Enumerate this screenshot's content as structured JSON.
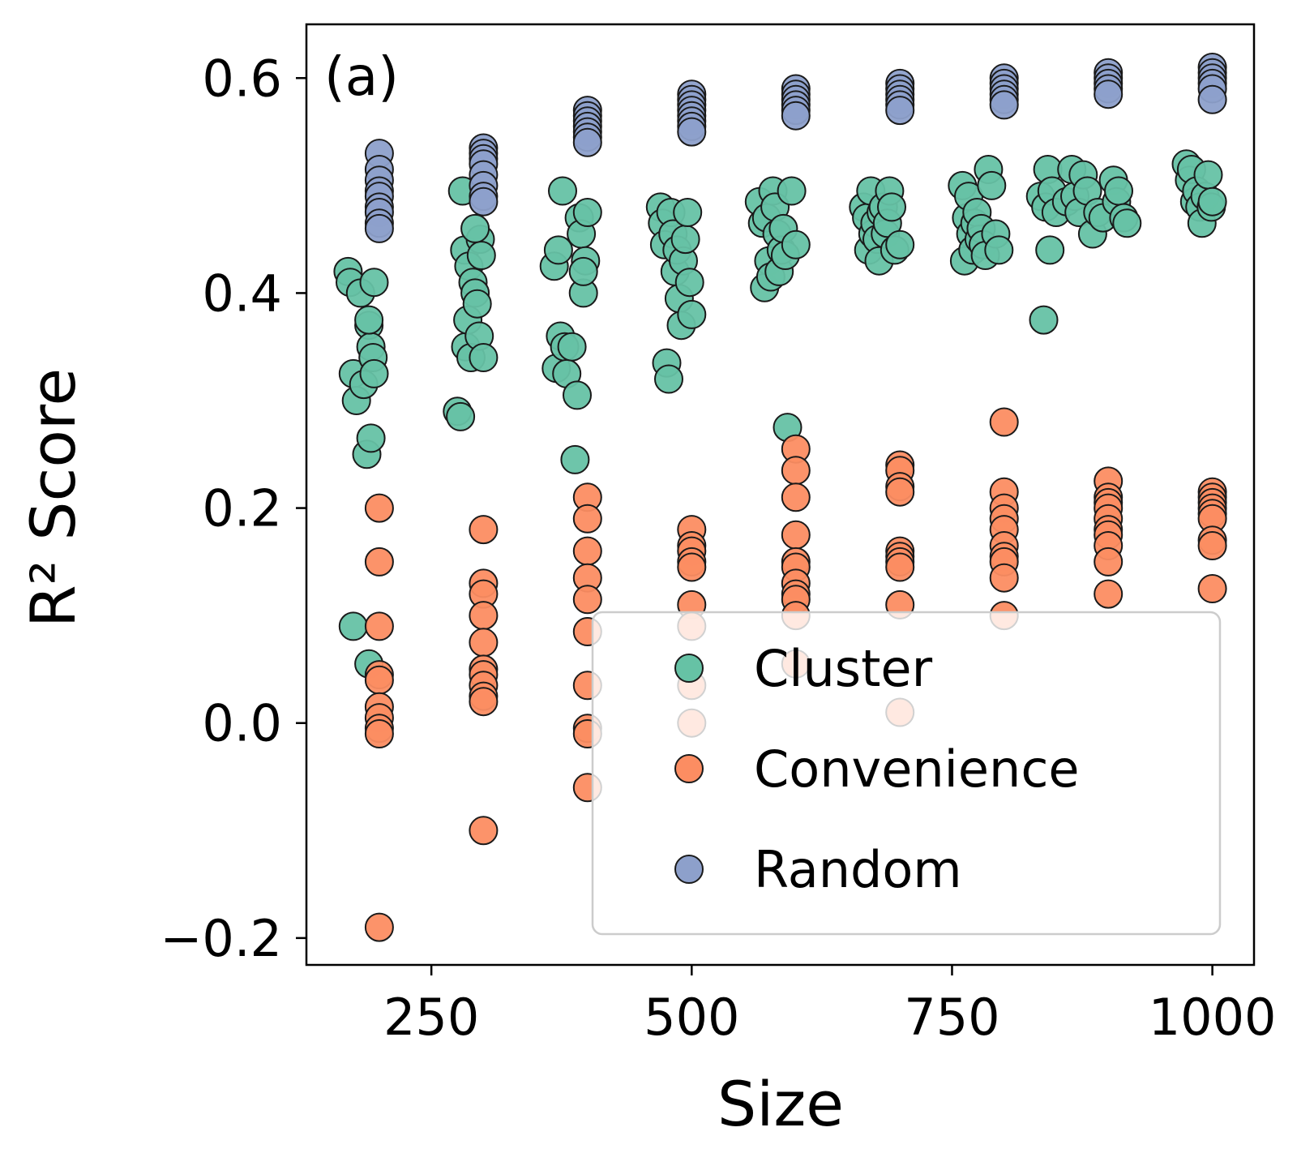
{
  "chart_data": {
    "type": "scatter",
    "panel_label": "(a)",
    "xlabel": "Size",
    "ylabel": "R² Score",
    "xlim": [
      130,
      1040
    ],
    "ylim": [
      -0.225,
      0.65
    ],
    "xticks": [
      250,
      500,
      750,
      1000
    ],
    "xtick_labels": [
      "250",
      "500",
      "750",
      "1000"
    ],
    "yticks": [
      -0.2,
      0.0,
      0.2,
      0.4,
      0.6
    ],
    "ytick_labels": [
      "−0.2",
      "0.0",
      "0.2",
      "0.4",
      "0.6"
    ],
    "grid": false,
    "legend_position": "lower-right",
    "series": [
      {
        "name": "Cluster",
        "color": "#66c2a5",
        "points": [
          [
            170,
            0.42
          ],
          [
            172,
            0.41
          ],
          [
            175,
            0.325
          ],
          [
            178,
            0.3
          ],
          [
            182,
            0.4
          ],
          [
            185,
            0.315
          ],
          [
            188,
            0.25
          ],
          [
            190,
            0.37
          ],
          [
            192,
            0.35
          ],
          [
            194,
            0.34
          ],
          [
            195,
            0.325
          ],
          [
            192,
            0.265
          ],
          [
            190,
            0.375
          ],
          [
            195,
            0.41
          ],
          [
            175,
            0.09
          ],
          [
            190,
            0.055
          ],
          [
            275,
            0.29
          ],
          [
            278,
            0.285
          ],
          [
            280,
            0.495
          ],
          [
            282,
            0.44
          ],
          [
            283,
            0.35
          ],
          [
            285,
            0.375
          ],
          [
            286,
            0.425
          ],
          [
            288,
            0.34
          ],
          [
            290,
            0.41
          ],
          [
            292,
            0.4
          ],
          [
            294,
            0.39
          ],
          [
            296,
            0.36
          ],
          [
            297,
            0.45
          ],
          [
            298,
            0.435
          ],
          [
            300,
            0.34
          ],
          [
            292,
            0.46
          ],
          [
            368,
            0.425
          ],
          [
            370,
            0.33
          ],
          [
            372,
            0.44
          ],
          [
            374,
            0.36
          ],
          [
            376,
            0.495
          ],
          [
            378,
            0.35
          ],
          [
            380,
            0.325
          ],
          [
            385,
            0.35
          ],
          [
            388,
            0.245
          ],
          [
            390,
            0.305
          ],
          [
            392,
            0.47
          ],
          [
            394,
            0.455
          ],
          [
            396,
            0.4
          ],
          [
            398,
            0.43
          ],
          [
            400,
            0.475
          ],
          [
            396,
            0.42
          ],
          [
            470,
            0.48
          ],
          [
            472,
            0.465
          ],
          [
            474,
            0.445
          ],
          [
            476,
            0.335
          ],
          [
            478,
            0.32
          ],
          [
            480,
            0.475
          ],
          [
            482,
            0.455
          ],
          [
            484,
            0.42
          ],
          [
            486,
            0.44
          ],
          [
            488,
            0.395
          ],
          [
            490,
            0.37
          ],
          [
            492,
            0.43
          ],
          [
            494,
            0.45
          ],
          [
            496,
            0.475
          ],
          [
            498,
            0.41
          ],
          [
            500,
            0.38
          ],
          [
            565,
            0.485
          ],
          [
            568,
            0.465
          ],
          [
            570,
            0.405
          ],
          [
            572,
            0.47
          ],
          [
            574,
            0.43
          ],
          [
            576,
            0.415
          ],
          [
            578,
            0.495
          ],
          [
            580,
            0.48
          ],
          [
            582,
            0.455
          ],
          [
            584,
            0.42
          ],
          [
            586,
            0.44
          ],
          [
            588,
            0.46
          ],
          [
            590,
            0.435
          ],
          [
            592,
            0.275
          ],
          [
            596,
            0.495
          ],
          [
            600,
            0.445
          ],
          [
            665,
            0.48
          ],
          [
            668,
            0.47
          ],
          [
            670,
            0.44
          ],
          [
            672,
            0.495
          ],
          [
            674,
            0.455
          ],
          [
            676,
            0.465
          ],
          [
            678,
            0.45
          ],
          [
            680,
            0.43
          ],
          [
            682,
            0.475
          ],
          [
            684,
            0.48
          ],
          [
            686,
            0.455
          ],
          [
            688,
            0.465
          ],
          [
            690,
            0.495
          ],
          [
            692,
            0.48
          ],
          [
            695,
            0.44
          ],
          [
            700,
            0.445
          ],
          [
            760,
            0.5
          ],
          [
            762,
            0.43
          ],
          [
            764,
            0.47
          ],
          [
            766,
            0.49
          ],
          [
            768,
            0.455
          ],
          [
            770,
            0.44
          ],
          [
            772,
            0.465
          ],
          [
            774,
            0.475
          ],
          [
            776,
            0.45
          ],
          [
            778,
            0.46
          ],
          [
            780,
            0.445
          ],
          [
            782,
            0.435
          ],
          [
            785,
            0.515
          ],
          [
            788,
            0.5
          ],
          [
            792,
            0.455
          ],
          [
            795,
            0.44
          ],
          [
            835,
            0.49
          ],
          [
            838,
            0.375
          ],
          [
            840,
            0.48
          ],
          [
            842,
            0.515
          ],
          [
            844,
            0.44
          ],
          [
            846,
            0.495
          ],
          [
            850,
            0.475
          ],
          [
            860,
            0.485
          ],
          [
            865,
            0.515
          ],
          [
            868,
            0.49
          ],
          [
            872,
            0.475
          ],
          [
            876,
            0.51
          ],
          [
            880,
            0.495
          ],
          [
            885,
            0.455
          ],
          [
            890,
            0.475
          ],
          [
            895,
            0.47
          ],
          [
            905,
            0.505
          ],
          [
            908,
            0.485
          ],
          [
            910,
            0.495
          ],
          [
            915,
            0.47
          ],
          [
            918,
            0.465
          ],
          [
            975,
            0.52
          ],
          [
            978,
            0.505
          ],
          [
            980,
            0.515
          ],
          [
            983,
            0.485
          ],
          [
            985,
            0.495
          ],
          [
            988,
            0.48
          ],
          [
            990,
            0.465
          ],
          [
            993,
            0.49
          ],
          [
            996,
            0.51
          ],
          [
            999,
            0.48
          ],
          [
            1000,
            0.485
          ]
        ]
      },
      {
        "name": "Convenience",
        "color": "#fc8d62",
        "points": [
          [
            200,
            0.2
          ],
          [
            200,
            0.15
          ],
          [
            200,
            0.09
          ],
          [
            200,
            0.045
          ],
          [
            200,
            0.04
          ],
          [
            200,
            0.015
          ],
          [
            200,
            0.005
          ],
          [
            200,
            -0.005
          ],
          [
            200,
            -0.01
          ],
          [
            200,
            -0.19
          ],
          [
            300,
            0.18
          ],
          [
            300,
            0.13
          ],
          [
            300,
            0.12
          ],
          [
            300,
            0.1
          ],
          [
            300,
            0.075
          ],
          [
            300,
            0.05
          ],
          [
            300,
            0.045
          ],
          [
            300,
            0.035
          ],
          [
            300,
            0.025
          ],
          [
            300,
            0.02
          ],
          [
            300,
            -0.1
          ],
          [
            400,
            0.21
          ],
          [
            400,
            0.19
          ],
          [
            400,
            0.16
          ],
          [
            400,
            0.135
          ],
          [
            400,
            0.115
          ],
          [
            400,
            0.085
          ],
          [
            400,
            0.035
          ],
          [
            400,
            -0.005
          ],
          [
            400,
            -0.01
          ],
          [
            400,
            -0.06
          ],
          [
            500,
            0.18
          ],
          [
            500,
            0.165
          ],
          [
            500,
            0.16
          ],
          [
            500,
            0.15
          ],
          [
            500,
            0.145
          ],
          [
            500,
            0.11
          ],
          [
            500,
            0.09
          ],
          [
            500,
            0.035
          ],
          [
            500,
            0.0
          ],
          [
            600,
            0.255
          ],
          [
            600,
            0.235
          ],
          [
            600,
            0.21
          ],
          [
            600,
            0.175
          ],
          [
            600,
            0.15
          ],
          [
            600,
            0.145
          ],
          [
            600,
            0.13
          ],
          [
            600,
            0.12
          ],
          [
            600,
            0.115
          ],
          [
            600,
            0.1
          ],
          [
            600,
            0.055
          ],
          [
            700,
            0.24
          ],
          [
            700,
            0.235
          ],
          [
            700,
            0.22
          ],
          [
            700,
            0.215
          ],
          [
            700,
            0.16
          ],
          [
            700,
            0.155
          ],
          [
            700,
            0.15
          ],
          [
            700,
            0.145
          ],
          [
            700,
            0.11
          ],
          [
            700,
            0.01
          ],
          [
            800,
            0.28
          ],
          [
            800,
            0.215
          ],
          [
            800,
            0.2
          ],
          [
            800,
            0.19
          ],
          [
            800,
            0.18
          ],
          [
            800,
            0.165
          ],
          [
            800,
            0.155
          ],
          [
            800,
            0.15
          ],
          [
            800,
            0.135
          ],
          [
            800,
            0.1
          ],
          [
            900,
            0.225
          ],
          [
            900,
            0.21
          ],
          [
            900,
            0.205
          ],
          [
            900,
            0.2
          ],
          [
            900,
            0.19
          ],
          [
            900,
            0.18
          ],
          [
            900,
            0.175
          ],
          [
            900,
            0.165
          ],
          [
            900,
            0.15
          ],
          [
            900,
            0.12
          ],
          [
            1000,
            0.215
          ],
          [
            1000,
            0.21
          ],
          [
            1000,
            0.205
          ],
          [
            1000,
            0.2
          ],
          [
            1000,
            0.195
          ],
          [
            1000,
            0.19
          ],
          [
            1000,
            0.17
          ],
          [
            1000,
            0.165
          ],
          [
            1000,
            0.125
          ]
        ]
      },
      {
        "name": "Random",
        "color": "#8da0cb",
        "points": [
          [
            200,
            0.53
          ],
          [
            200,
            0.515
          ],
          [
            200,
            0.505
          ],
          [
            200,
            0.495
          ],
          [
            200,
            0.49
          ],
          [
            200,
            0.48
          ],
          [
            200,
            0.475
          ],
          [
            200,
            0.465
          ],
          [
            200,
            0.46
          ],
          [
            300,
            0.535
          ],
          [
            300,
            0.53
          ],
          [
            300,
            0.525
          ],
          [
            300,
            0.52
          ],
          [
            300,
            0.51
          ],
          [
            300,
            0.5
          ],
          [
            300,
            0.49
          ],
          [
            300,
            0.485
          ],
          [
            400,
            0.57
          ],
          [
            400,
            0.565
          ],
          [
            400,
            0.56
          ],
          [
            400,
            0.555
          ],
          [
            400,
            0.55
          ],
          [
            400,
            0.545
          ],
          [
            400,
            0.54
          ],
          [
            500,
            0.585
          ],
          [
            500,
            0.58
          ],
          [
            500,
            0.575
          ],
          [
            500,
            0.57
          ],
          [
            500,
            0.565
          ],
          [
            500,
            0.56
          ],
          [
            500,
            0.555
          ],
          [
            500,
            0.55
          ],
          [
            600,
            0.59
          ],
          [
            600,
            0.585
          ],
          [
            600,
            0.58
          ],
          [
            600,
            0.575
          ],
          [
            600,
            0.57
          ],
          [
            600,
            0.565
          ],
          [
            700,
            0.595
          ],
          [
            700,
            0.59
          ],
          [
            700,
            0.585
          ],
          [
            700,
            0.58
          ],
          [
            700,
            0.575
          ],
          [
            700,
            0.57
          ],
          [
            800,
            0.6
          ],
          [
            800,
            0.595
          ],
          [
            800,
            0.59
          ],
          [
            800,
            0.585
          ],
          [
            800,
            0.58
          ],
          [
            800,
            0.575
          ],
          [
            900,
            0.605
          ],
          [
            900,
            0.6
          ],
          [
            900,
            0.595
          ],
          [
            900,
            0.59
          ],
          [
            900,
            0.585
          ],
          [
            1000,
            0.61
          ],
          [
            1000,
            0.605
          ],
          [
            1000,
            0.6
          ],
          [
            1000,
            0.595
          ],
          [
            1000,
            0.59
          ],
          [
            1000,
            0.58
          ]
        ]
      }
    ]
  }
}
